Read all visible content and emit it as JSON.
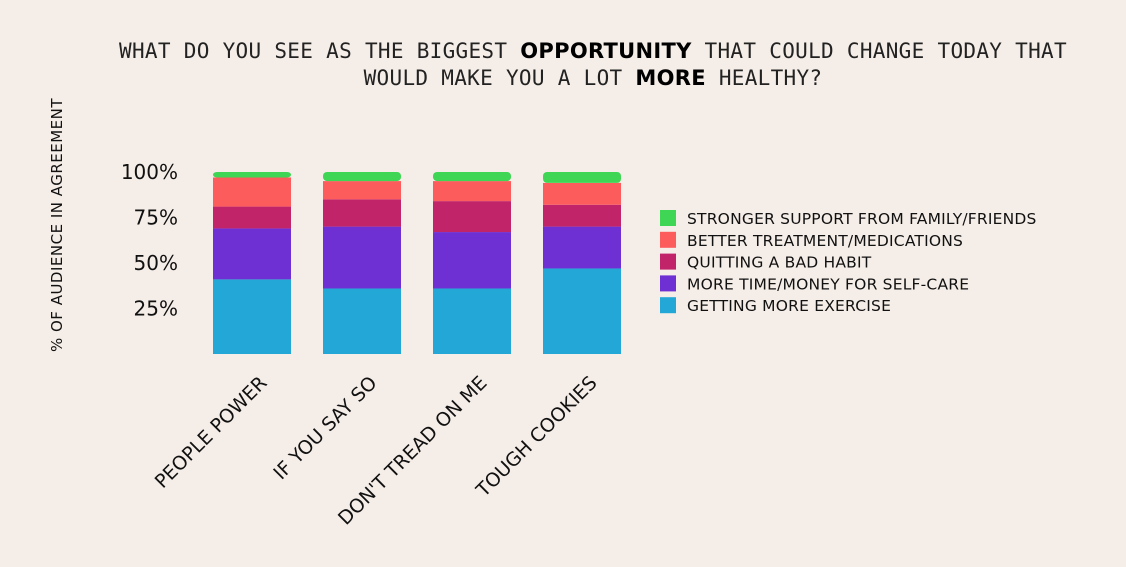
{
  "title": {
    "part1": "WHAT DO YOU SEE AS THE BIGGEST ",
    "bold1": "OPPORTUNITY",
    "part2": " THAT COULD CHANGE TODAY THAT",
    "part3": "WOULD MAKE YOU A LOT ",
    "bold2": "MORE",
    "part4": " HEALTHY?"
  },
  "chart_data": {
    "type": "bar",
    "stacked": true,
    "title": "WHAT DO YOU SEE AS THE BIGGEST OPPORTUNITY THAT COULD CHANGE TODAY THAT WOULD MAKE YOU A LOT MORE HEALTHY?",
    "xlabel": "",
    "ylabel": "% OF AUDIENCE IN AGREEMENT",
    "ylim": [
      0,
      100
    ],
    "yticks": [
      25,
      50,
      75,
      100
    ],
    "ytick_labels": [
      "25%",
      "50%",
      "75%",
      "100%"
    ],
    "grid": false,
    "legend_position": "right",
    "categories": [
      "PEOPLE POWER",
      "IF YOU SAY SO",
      "DON'T TREAD ON ME",
      "TOUGH COOKIES"
    ],
    "series": [
      {
        "name": "GETTING MORE EXERCISE",
        "color": "#22a7d6",
        "values": [
          41,
          36,
          36,
          47
        ]
      },
      {
        "name": "MORE TIME/MONEY FOR SELF-CARE",
        "color": "#6e2fd3",
        "values": [
          28,
          34,
          31,
          23
        ]
      },
      {
        "name": "QUITTING A BAD HABIT",
        "color": "#c2246a",
        "values": [
          12,
          15,
          17,
          12
        ]
      },
      {
        "name": "BETTER TREATMENT/MEDICATIONS",
        "color": "#fd5c5c",
        "values": [
          16,
          10,
          11,
          12
        ]
      },
      {
        "name": "STRONGER SUPPORT FROM FAMILY/FRIENDS",
        "color": "#3fd655",
        "values": [
          3,
          5,
          5,
          6
        ]
      }
    ],
    "legend_order": [
      4,
      3,
      2,
      1,
      0
    ]
  }
}
